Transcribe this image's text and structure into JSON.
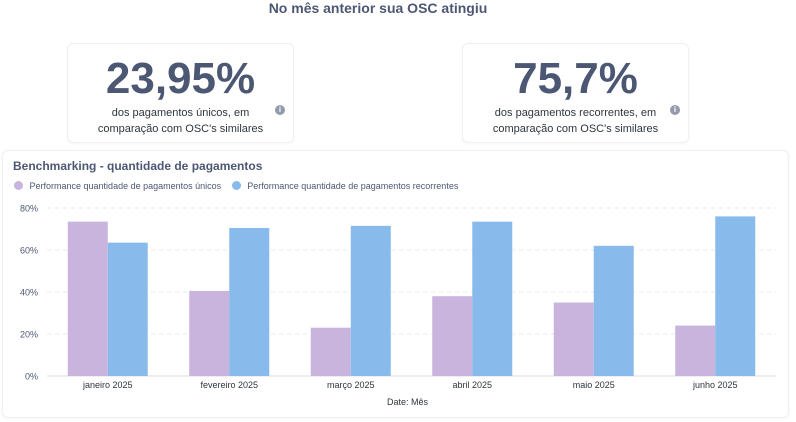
{
  "header": {
    "title": "No mês anterior sua OSC atingiu"
  },
  "kpis": [
    {
      "value": "23,95%",
      "line1": "dos pagamentos únicos, em",
      "line2": "comparação com OSC's similares"
    },
    {
      "value": "75,7%",
      "line1": "dos pagamentos recorrentes, em",
      "line2": "comparação com OSC's similares"
    }
  ],
  "chart_data": {
    "type": "bar",
    "title": "Benchmarking - quantidade de pagamentos",
    "xlabel": "Date: Mês",
    "ylabel": "",
    "categories": [
      "janeiro 2025",
      "fevereiro 2025",
      "março 2025",
      "abril 2025",
      "maio 2025",
      "junho 2025"
    ],
    "series": [
      {
        "name": "Performance quantidade de pagamentos únicos",
        "color": "#c8b4dc",
        "values": [
          73.5,
          40.5,
          23,
          38,
          35,
          24
        ]
      },
      {
        "name": "Performance quantidade de pagamentos recorrentes",
        "color": "#88bbeb",
        "values": [
          63.5,
          70.5,
          71.5,
          73.5,
          62,
          76
        ]
      }
    ],
    "ylim": [
      0,
      80
    ],
    "yticks": [
      0,
      20,
      40,
      60,
      80
    ],
    "ytick_labels": [
      "0%",
      "20%",
      "40%",
      "60%",
      "80%"
    ],
    "grid": true,
    "legend_position": "top-left"
  }
}
